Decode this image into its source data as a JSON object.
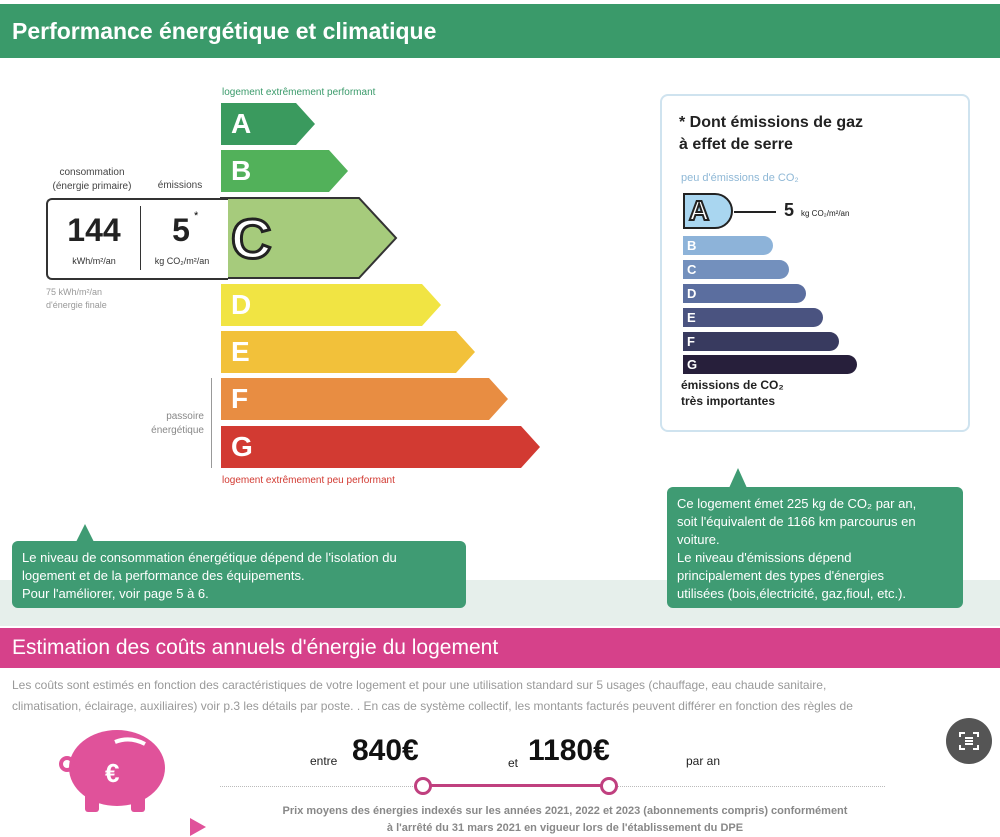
{
  "header": {
    "title": "Performance énergétique et climatique",
    "color": "#3a9a6a"
  },
  "energy": {
    "top_label": "logement extrêmement performant",
    "bottom_label": "logement extrêmement peu performant",
    "passoire_label_1": "passoire",
    "passoire_label_2": "énergétique",
    "classes": [
      {
        "letter": "A",
        "color": "#3a9a5e"
      },
      {
        "letter": "B",
        "color": "#52b15a"
      },
      {
        "letter": "C",
        "color": "#a6cb7c"
      },
      {
        "letter": "D",
        "color": "#f1e443"
      },
      {
        "letter": "E",
        "color": "#f2c13a"
      },
      {
        "letter": "F",
        "color": "#e88d42"
      },
      {
        "letter": "G",
        "color": "#d23a32"
      }
    ],
    "current_class": "C",
    "consumption_label_1": "consommation",
    "consumption_label_2": "(énergie primaire)",
    "emissions_label": "émissions",
    "consumption_value": "144",
    "consumption_unit": "kWh/m²/an",
    "emissions_value": "5",
    "emissions_star": "*",
    "emissions_unit": "kg CO₂/m²/an",
    "final_energy_1": "75 kWh/m²/an",
    "final_energy_2": "d'énergie finale"
  },
  "ges": {
    "title_1": "* Dont émissions de gaz",
    "title_2": "à effet de serre",
    "top_label": "peu d'émissions de CO₂",
    "classes": [
      {
        "letter": "A",
        "color": "#a9d6f0"
      },
      {
        "letter": "B",
        "color": "#8db3d9"
      },
      {
        "letter": "C",
        "color": "#7390bd"
      },
      {
        "letter": "D",
        "color": "#5b6e9f"
      },
      {
        "letter": "E",
        "color": "#4a5380"
      },
      {
        "letter": "F",
        "color": "#383a5f"
      },
      {
        "letter": "G",
        "color": "#271f3b"
      }
    ],
    "current_class": "A",
    "value": "5",
    "unit": "kg CO₂/m²/an",
    "bottom_label_1": "émissions de CO₂",
    "bottom_label_2": "très importantes"
  },
  "bubbles": {
    "left": [
      "Le niveau de consommation énergétique dépend de l'isolation du",
      "logement  et de la performance des équipements.",
      "Pour l'améliorer, voir page 5 à 6."
    ],
    "right": [
      "Ce logement émet 225 kg de CO₂ par an,",
      "soit l'équivalent de 1166 km parcourus en",
      "voiture.",
      "Le niveau d'émissions dépend",
      "principalement des types d'énergies",
      "utilisées (bois,électricité, gaz,fioul, etc.)."
    ]
  },
  "costs": {
    "title": "Estimation des coûts annuels d'énergie du logement",
    "color": "#d6418a",
    "intro_1": "Les coûts sont estimés en fonction des caractéristiques de votre logement et pour une utilisation standard sur 5 usages (chauffage, eau chaude sanitaire,",
    "intro_2": "climatisation, éclairage, auxiliaires) voir p.3 les détails par poste. . En cas de système collectif, les montants facturés peuvent différer en fonction des règles de",
    "between": "entre",
    "min": "840€",
    "and": "et",
    "max": "1180€",
    "per_year": "par an",
    "note_1": "Prix moyens des énergies indexés sur les années 2021, 2022 et 2023 (abonnements compris) conformément",
    "note_2": "à l'arrêté du 31 mars 2021 en vigueur lors de l'établissement du DPE"
  }
}
